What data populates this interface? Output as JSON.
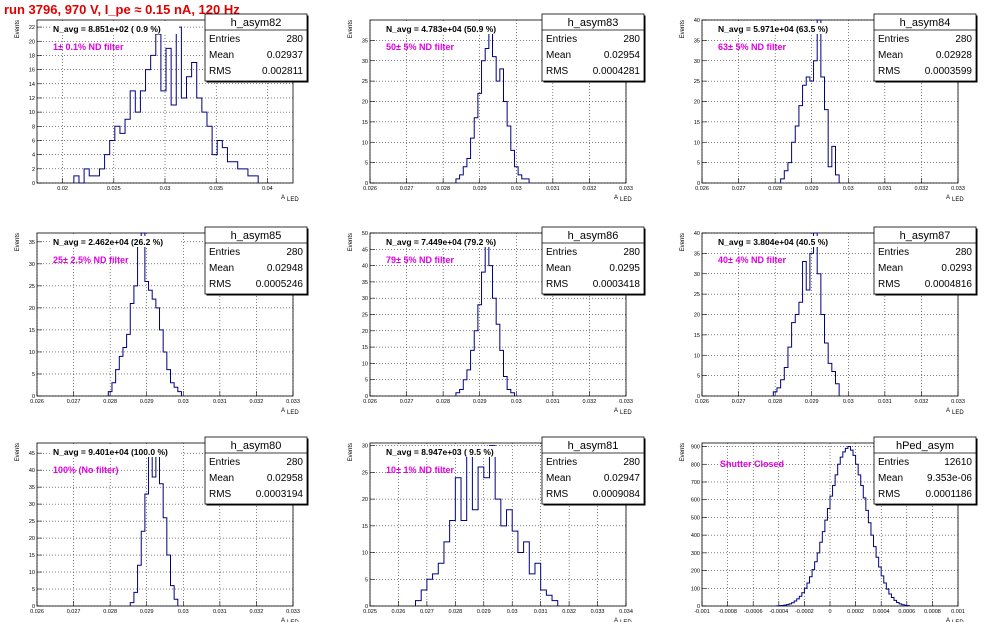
{
  "page_title": "run 3796,   970 V, I_pe ≈ 0.15 nA, 120 Hz",
  "colors": {
    "title": "#e00000",
    "histogram": "#000080",
    "annotation": "#e000e0",
    "grid": "#000000"
  },
  "chart_data": [
    {
      "type": "bar",
      "stats": {
        "name": "h_asym82",
        "entries_label": "Entries",
        "entries": "280",
        "mean_label": "Mean",
        "mean": "0.02937",
        "rms_label": "RMS",
        "rms": "0.002811"
      },
      "n_avg_text": "N_avg = 8.851e+02 ( 0.9 %)",
      "filter_text": "1± 0.1% ND filter",
      "ylabel": "Events",
      "xlabel": "A",
      "xlim": [
        0.0175,
        0.0425
      ],
      "ylim": [
        0,
        23
      ],
      "xticks": [
        0.02,
        0.025,
        0.03,
        0.035,
        0.04
      ],
      "xtick_labels": [
        "0.02",
        "0.025",
        "0.03",
        "0.035",
        "0.04"
      ],
      "yticks": [
        0,
        2,
        4,
        6,
        8,
        10,
        12,
        14,
        16,
        18,
        20,
        22
      ],
      "x_start": 0.0211,
      "bin_width": 0.0005,
      "values": [
        1,
        0,
        2,
        1,
        1,
        2,
        4,
        6,
        8,
        7,
        9,
        13,
        10,
        13,
        16,
        18,
        21,
        13,
        19,
        11,
        22,
        12,
        15,
        17,
        12,
        10,
        8,
        4,
        6,
        5,
        3,
        3,
        2,
        2,
        1,
        1
      ]
    },
    {
      "type": "bar",
      "stats": {
        "name": "h_asym83",
        "entries_label": "Entries",
        "entries": "280",
        "mean_label": "Mean",
        "mean": "0.02954",
        "rms_label": "RMS",
        "rms": "0.0004281"
      },
      "n_avg_text": "N_avg = 4.783e+04 (50.9 %)",
      "filter_text": "50± 5% ND filter",
      "ylabel": "Events",
      "xlabel": "A",
      "xlim": [
        0.026,
        0.033
      ],
      "ylim": [
        0,
        40
      ],
      "xticks": [
        0.026,
        0.027,
        0.028,
        0.029,
        0.03,
        0.031,
        0.032,
        0.033
      ],
      "xtick_labels": [
        "0.026",
        "0.027",
        "0.028",
        "0.029",
        "0.03",
        "0.031",
        "0.032",
        "0.033"
      ],
      "yticks": [
        0,
        5,
        10,
        15,
        20,
        25,
        30,
        35
      ],
      "x_start": 0.02835,
      "bin_width": 0.0001,
      "values": [
        1,
        2,
        4,
        6,
        11,
        16,
        22,
        30,
        33,
        38,
        31,
        25,
        28,
        20,
        14,
        8,
        4,
        2,
        1,
        1
      ]
    },
    {
      "type": "bar",
      "stats": {
        "name": "h_asym84",
        "entries_label": "Entries",
        "entries": "280",
        "mean_label": "Mean",
        "mean": "0.02928",
        "rms_label": "RMS",
        "rms": "0.0003599"
      },
      "n_avg_text": "N_avg = 5.971e+04 (63.5 %)",
      "filter_text": "63± 5% ND filter",
      "ylabel": "Events",
      "xlabel": "A",
      "xlim": [
        0.026,
        0.033
      ],
      "ylim": [
        0,
        40
      ],
      "xticks": [
        0.026,
        0.027,
        0.028,
        0.029,
        0.03,
        0.031,
        0.032,
        0.033
      ],
      "xtick_labels": [
        "0.026",
        "0.027",
        "0.028",
        "0.029",
        "0.03",
        "0.031",
        "0.032",
        "0.033"
      ],
      "yticks": [
        0,
        5,
        10,
        15,
        20,
        25,
        30,
        35,
        40
      ],
      "x_start": 0.02815,
      "bin_width": 0.0001,
      "values": [
        1,
        3,
        5,
        10,
        14,
        19,
        24,
        26,
        25,
        30,
        42,
        26,
        18,
        4,
        9,
        2
      ]
    },
    {
      "type": "bar",
      "stats": {
        "name": "h_asym85",
        "entries_label": "Entries",
        "entries": "280",
        "mean_label": "Mean",
        "mean": "0.02948",
        "rms_label": "RMS",
        "rms": "0.0005246"
      },
      "n_avg_text": "N_avg = 2.462e+04 (26.2 %)",
      "filter_text": "25± 2.5% ND filter",
      "ylabel": "Events",
      "xlabel": "A",
      "xlim": [
        0.026,
        0.033
      ],
      "ylim": [
        0,
        37
      ],
      "xticks": [
        0.026,
        0.027,
        0.028,
        0.029,
        0.03,
        0.031,
        0.032,
        0.033
      ],
      "xtick_labels": [
        "0.026",
        "0.027",
        "0.028",
        "0.029",
        "0.03",
        "0.031",
        "0.032",
        "0.033"
      ],
      "yticks": [
        0,
        5,
        10,
        15,
        20,
        25,
        30,
        35
      ],
      "x_start": 0.02795,
      "bin_width": 0.0001,
      "values": [
        1,
        3,
        6,
        9,
        11,
        14,
        21,
        25,
        34,
        37,
        26,
        24,
        22,
        20,
        15,
        10,
        6,
        3,
        2,
        1
      ]
    },
    {
      "type": "bar",
      "stats": {
        "name": "h_asym86",
        "entries_label": "Entries",
        "entries": "280",
        "mean_label": "Mean",
        "mean": "0.0295",
        "rms_label": "RMS",
        "rms": "0.0003418"
      },
      "n_avg_text": "N_avg = 7.449e+04 (79.2 %)",
      "filter_text": "79± 5% ND filter",
      "ylabel": "Events",
      "xlabel": "A",
      "xlim": [
        0.026,
        0.033
      ],
      "ylim": [
        0,
        50
      ],
      "xticks": [
        0.026,
        0.027,
        0.028,
        0.029,
        0.03,
        0.031,
        0.032,
        0.033
      ],
      "xtick_labels": [
        "0.026",
        "0.027",
        "0.028",
        "0.029",
        "0.03",
        "0.031",
        "0.032",
        "0.033"
      ],
      "yticks": [
        0,
        5,
        10,
        15,
        20,
        25,
        30,
        35,
        40,
        45,
        50
      ],
      "x_start": 0.02835,
      "bin_width": 0.0001,
      "values": [
        1,
        2,
        5,
        8,
        14,
        20,
        28,
        38,
        47,
        40,
        30,
        22,
        14,
        6,
        2,
        1
      ]
    },
    {
      "type": "bar",
      "stats": {
        "name": "h_asym87",
        "entries_label": "Entries",
        "entries": "280",
        "mean_label": "Mean",
        "mean": "0.0293",
        "rms_label": "RMS",
        "rms": "0.0004816"
      },
      "n_avg_text": "N_avg = 3.804e+04 (40.5 %)",
      "filter_text": "40± 4% ND filter",
      "ylabel": "Events",
      "xlabel": "A",
      "xlim": [
        0.026,
        0.033
      ],
      "ylim": [
        0,
        40
      ],
      "xticks": [
        0.026,
        0.027,
        0.028,
        0.029,
        0.03,
        0.031,
        0.032,
        0.033
      ],
      "xtick_labels": [
        "0.026",
        "0.027",
        "0.028",
        "0.029",
        "0.03",
        "0.031",
        "0.032",
        "0.033"
      ],
      "yticks": [
        0,
        5,
        10,
        15,
        20,
        25,
        30,
        35,
        40
      ],
      "x_start": 0.02795,
      "bin_width": 0.0001,
      "values": [
        1,
        2,
        4,
        7,
        12,
        18,
        20,
        23,
        33,
        26,
        35,
        41,
        30,
        20,
        13,
        8,
        6,
        3
      ]
    },
    {
      "type": "bar",
      "stats": {
        "name": "h_asym80",
        "entries_label": "Entries",
        "entries": "280",
        "mean_label": "Mean",
        "mean": "0.02958",
        "rms_label": "RMS",
        "rms": "0.0003194"
      },
      "n_avg_text": "N_avg = 9.401e+04 (100.0 %)",
      "filter_text": "100% (No filter)",
      "ylabel": "Events",
      "xlabel": "A",
      "xlim": [
        0.026,
        0.033
      ],
      "ylim": [
        0,
        48
      ],
      "xticks": [
        0.026,
        0.027,
        0.028,
        0.029,
        0.03,
        0.031,
        0.032,
        0.033
      ],
      "xtick_labels": [
        "0.026",
        "0.027",
        "0.028",
        "0.029",
        "0.03",
        "0.031",
        "0.032",
        "0.033"
      ],
      "yticks": [
        0,
        5,
        10,
        15,
        20,
        25,
        30,
        35,
        40,
        45
      ],
      "x_start": 0.02855,
      "bin_width": 0.0001,
      "values": [
        1,
        4,
        12,
        22,
        33,
        45,
        38,
        46,
        36,
        26,
        15,
        6,
        2
      ]
    },
    {
      "type": "bar",
      "stats": {
        "name": "h_asym81",
        "entries_label": "Entries",
        "entries": "280",
        "mean_label": "Mean",
        "mean": "0.02947",
        "rms_label": "RMS",
        "rms": "0.0009084"
      },
      "n_avg_text": "N_avg = 8.947e+03 ( 9.5 %)",
      "filter_text": "10± 1% ND filter",
      "ylabel": "Events",
      "xlabel": "A",
      "xlim": [
        0.025,
        0.034
      ],
      "ylim": [
        0,
        30.5
      ],
      "xticks": [
        0.025,
        0.026,
        0.027,
        0.028,
        0.029,
        0.03,
        0.031,
        0.032,
        0.033,
        0.034
      ],
      "xtick_labels": [
        "0.025",
        "0.026",
        "0.027",
        "0.028",
        "0.029",
        "0.03",
        "0.031",
        "0.032",
        "0.033",
        "0.034"
      ],
      "yticks": [
        0,
        5,
        10,
        15,
        20,
        25,
        30
      ],
      "x_start": 0.0266,
      "bin_width": 0.0002,
      "values": [
        1,
        3,
        5,
        6,
        8,
        12,
        16,
        24,
        16,
        28,
        18,
        26,
        24,
        30,
        20,
        15,
        18,
        14,
        10,
        12,
        6,
        8,
        3,
        2,
        1
      ]
    },
    {
      "type": "bar",
      "stats": {
        "name": "hPed_asym",
        "entries_label": "Entries",
        "entries": "12610",
        "mean_label": "Mean",
        "mean": "9.353e-06",
        "rms_label": "RMS",
        "rms": "0.0001186"
      },
      "n_avg_text": "",
      "filter_text": "Shutter Closed",
      "ylabel": "Events",
      "xlabel": "A",
      "xlim": [
        -0.001,
        0.001
      ],
      "ylim": [
        0,
        920
      ],
      "xticks": [
        -0.001,
        -0.0008,
        -0.0006,
        -0.0004,
        -0.0002,
        0,
        0.0002,
        0.0004,
        0.0006,
        0.0008,
        0.001
      ],
      "xtick_labels": [
        "-0.001",
        "-0.0008",
        "-0.0006",
        "-0.0004",
        "-0.0002",
        "0",
        "0.0002",
        "0.0004",
        "0.0006",
        "0.0008",
        "0.001"
      ],
      "yticks": [
        0,
        100,
        200,
        300,
        400,
        500,
        600,
        700,
        800,
        900
      ],
      "x_start": -0.00042,
      "bin_width": 2e-05,
      "values": [
        1,
        2,
        3,
        5,
        8,
        12,
        18,
        28,
        40,
        55,
        75,
        100,
        130,
        165,
        205,
        250,
        300,
        360,
        420,
        485,
        550,
        620,
        680,
        740,
        800,
        840,
        870,
        890,
        900,
        880,
        850,
        800,
        740,
        680,
        610,
        540,
        470,
        400,
        335,
        275,
        220,
        170,
        130,
        95,
        68,
        48,
        32,
        20,
        12,
        7,
        4,
        2
      ]
    }
  ]
}
